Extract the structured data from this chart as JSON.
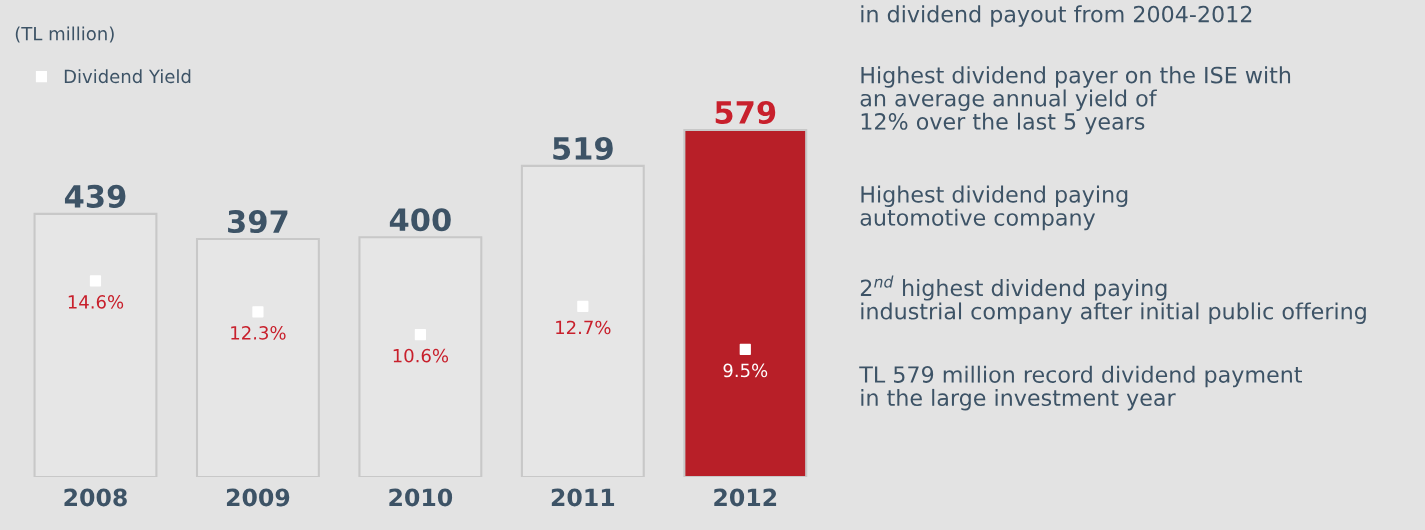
{
  "chart_data": {
    "type": "bar",
    "subtitle": "(TL million)",
    "categories": [
      "2008",
      "2009",
      "2010",
      "2011",
      "2012"
    ],
    "series": [
      {
        "values": [
          439,
          397,
          400,
          519,
          579
        ],
        "colors": [
          "#e6e6e6",
          "#e6e6e6",
          "#e6e6e6",
          "#e6e6e6",
          "#b81f28"
        ]
      },
      {
        "type": "scatter",
        "name": "Dividend Yield",
        "axis": "y2",
        "color": "#ffffff",
        "marker": "square",
        "values": [
          14.6,
          12.3,
          10.6,
          12.7,
          9.5
        ],
        "value_labels": [
          "14.6%",
          "12.3%",
          "10.6%",
          "12.7%",
          "9.5%"
        ]
      }
    ],
    "data_labels": true,
    "legend": "top left",
    "grid": false,
    "annotations": [
      "in dividend payout from 2004-2012",
      "Highest dividend payer on the ISE with\nan average annual yield of\n12% over the last 5 years",
      "Highest dividend paying\nautomotive company",
      "2$^{nd}$ highest dividend paying\nindustrial company after initial public offering",
      "TL 579 million record dividend payment\nin the large investment year"
    ]
  }
}
